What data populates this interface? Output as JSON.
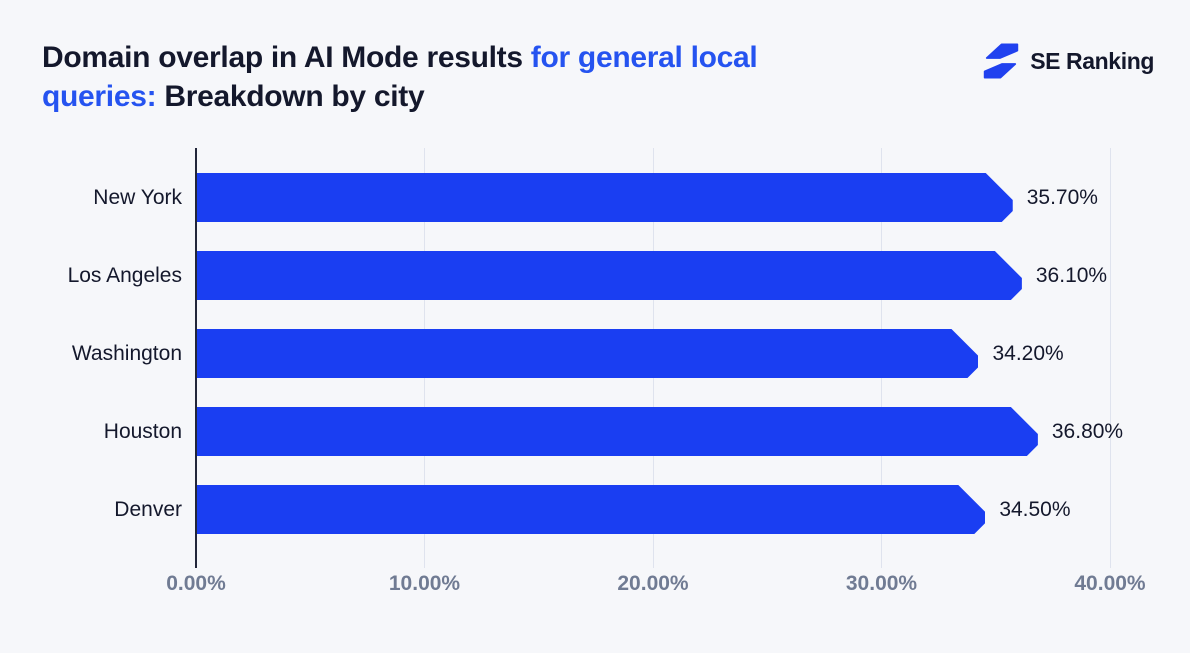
{
  "header": {
    "title_segments": [
      {
        "text": "Domain overlap in AI Mode results ",
        "style": "dark"
      },
      {
        "text": "for general local",
        "style": "accent"
      },
      {
        "br": true
      },
      {
        "text": "queries:",
        "style": "accent"
      },
      {
        "text": " Breakdown by city",
        "style": "dark"
      }
    ],
    "title_full": "Domain overlap in AI Mode results for general local queries: Breakdown by city",
    "logo": {
      "brand": "SE Ranking",
      "icon": "lightning-bolt-icon"
    }
  },
  "colors": {
    "background": "#f6f7fa",
    "bar": "#1a3ef2",
    "accent": "#2553f0",
    "dark_text": "#14182c",
    "axis_label": "#707b93",
    "gridline": "#dfe3ee",
    "axis_line": "#22263a"
  },
  "chart_data": {
    "type": "bar",
    "orientation": "horizontal",
    "title": "Domain overlap in AI Mode results for general local queries: Breakdown by city",
    "categories": [
      "New York",
      "Los Angeles",
      "Washington",
      "Houston",
      "Denver"
    ],
    "values": [
      35.7,
      36.1,
      34.2,
      36.8,
      34.5
    ],
    "value_labels": [
      "35.70%",
      "36.10%",
      "34.20%",
      "36.80%",
      "34.50%"
    ],
    "xlabel": "",
    "ylabel": "",
    "xlim": [
      0,
      40
    ],
    "x_ticks": [
      0,
      10,
      20,
      30,
      40
    ],
    "x_tick_labels": [
      "0.00%",
      "10.00%",
      "20.00%",
      "30.00%",
      "40.00%"
    ],
    "grid": "vertical-gridlines-on",
    "legend": "none"
  }
}
